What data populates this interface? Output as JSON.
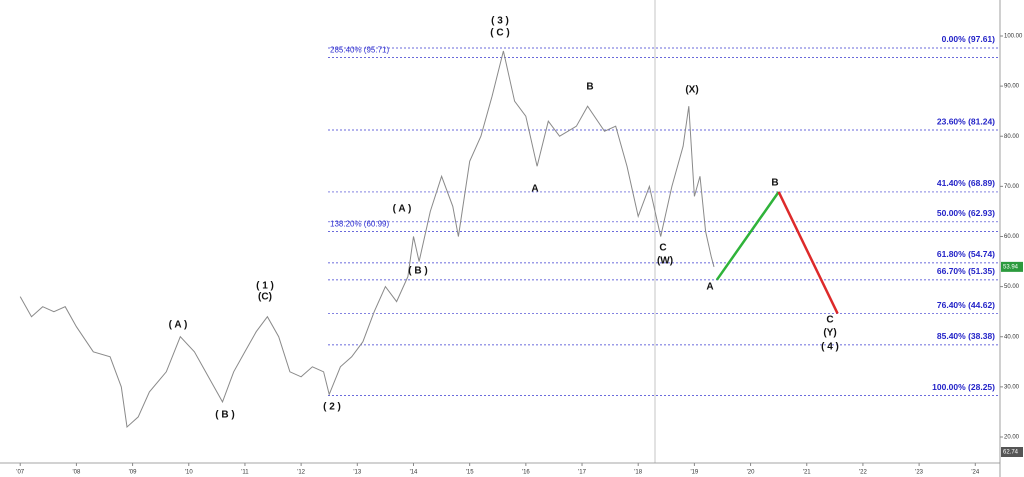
{
  "chart_data": {
    "type": "line",
    "xlim": [
      2006.64,
      2024.44
    ],
    "ylim": [
      14.81,
      107.18
    ],
    "xticks": [
      {
        "value": 2007,
        "label": "'07"
      },
      {
        "value": 2008,
        "label": "'08"
      },
      {
        "value": 2009,
        "label": "'09"
      },
      {
        "value": 2010,
        "label": "'10"
      },
      {
        "value": 2011,
        "label": "'11"
      },
      {
        "value": 2012,
        "label": "'12"
      },
      {
        "value": 2013,
        "label": "'13"
      },
      {
        "value": 2014,
        "label": "'14"
      },
      {
        "value": 2015,
        "label": "'15"
      },
      {
        "value": 2016,
        "label": "'16"
      },
      {
        "value": 2017,
        "label": "'17"
      },
      {
        "value": 2018,
        "label": "'18"
      },
      {
        "value": 2019,
        "label": "'19"
      },
      {
        "value": 2020,
        "label": "'20"
      },
      {
        "value": 2021,
        "label": "'21"
      },
      {
        "value": 2022,
        "label": "'22"
      },
      {
        "value": 2023,
        "label": "'23"
      },
      {
        "value": 2024,
        "label": "'24"
      }
    ],
    "yticks": [
      {
        "value": 20,
        "label": "20.00"
      },
      {
        "value": 30,
        "label": "30.00"
      },
      {
        "value": 40,
        "label": "40.00"
      },
      {
        "value": 50,
        "label": "50.00"
      },
      {
        "value": 60,
        "label": "60.00"
      },
      {
        "value": 70,
        "label": "70.00"
      },
      {
        "value": 80,
        "label": "80.00"
      },
      {
        "value": 90,
        "label": "90.00"
      },
      {
        "value": 100,
        "label": "100.00"
      }
    ],
    "series": [
      {
        "color": "#8a8a8a",
        "x": [
          2007.0,
          2007.2,
          2007.4,
          2007.6,
          2007.8,
          2008.0,
          2008.3,
          2008.6,
          2008.8,
          2008.9,
          2009.1,
          2009.3,
          2009.6,
          2009.85,
          2010.1,
          2010.3,
          2010.6,
          2010.8,
          2011.0,
          2011.2,
          2011.4,
          2011.6,
          2011.8,
          2012.0,
          2012.2,
          2012.4,
          2012.5,
          2012.7,
          2012.9,
          2013.1,
          2013.3,
          2013.5,
          2013.7,
          2013.9,
          2014.0,
          2014.1,
          2014.3,
          2014.5,
          2014.7,
          2014.8,
          2015.0,
          2015.2,
          2015.4,
          2015.6,
          2015.8,
          2016.0,
          2016.2,
          2016.4,
          2016.6,
          2016.9,
          2017.1,
          2017.4,
          2017.6,
          2017.8,
          2018.0,
          2018.2,
          2018.4,
          2018.6,
          2018.8,
          2018.9,
          2019.0,
          2019.1,
          2019.2,
          2019.3,
          2019.35
        ],
        "values": [
          48,
          44,
          46,
          45,
          46,
          42,
          37,
          36,
          30,
          22,
          24,
          29,
          33,
          40,
          37,
          33,
          27,
          33,
          37,
          41,
          44,
          40,
          33,
          32,
          34,
          33,
          28.5,
          34,
          36,
          39,
          45,
          50,
          47,
          52,
          60,
          55,
          65,
          72,
          66,
          60,
          75,
          80,
          88,
          97,
          87,
          84,
          74,
          83,
          80,
          82,
          86,
          81,
          82,
          74,
          64,
          70,
          60,
          70,
          78,
          86,
          68,
          72,
          61,
          56,
          53.94
        ]
      },
      {
        "color": "#2fb33a",
        "x": [
          2019.4,
          2020.5
        ],
        "values": [
          51.35,
          68.89
        ]
      },
      {
        "color": "#dd2a2a",
        "x": [
          2020.5,
          2021.55
        ],
        "values": [
          68.89,
          44.62
        ]
      }
    ],
    "fib_levels": [
      {
        "value": 97.61,
        "label": "0.00% (97.61)"
      },
      {
        "value": 81.24,
        "label": "23.60% (81.24)"
      },
      {
        "value": 68.89,
        "label": "41.40% (68.89)"
      },
      {
        "value": 62.93,
        "label": "50.00% (62.93)"
      },
      {
        "value": 54.74,
        "label": "61.80% (54.74)"
      },
      {
        "value": 51.35,
        "label": "66.70% (51.35)"
      },
      {
        "value": 44.62,
        "label": "76.40% (44.62)"
      },
      {
        "value": 38.38,
        "label": "85.40% (38.38)"
      },
      {
        "value": 28.25,
        "label": "100.00% (28.25)"
      }
    ],
    "extension_levels": [
      {
        "value": 95.71,
        "label": "285.40% (95.71)"
      },
      {
        "value": 60.99,
        "label": "138.20% (60.99)"
      }
    ],
    "wave_labels": [
      "( A )",
      "( B )",
      "( 1 )",
      "(C)",
      "( 2 )",
      "( A )",
      "( B )",
      "( 3 )",
      "( C )",
      "A",
      "B",
      "C",
      "(W)",
      "(X)",
      "A",
      "B",
      "C",
      "(Y)",
      "( 4 )"
    ],
    "price_tags": [
      53.94,
      62.74
    ]
  }
}
